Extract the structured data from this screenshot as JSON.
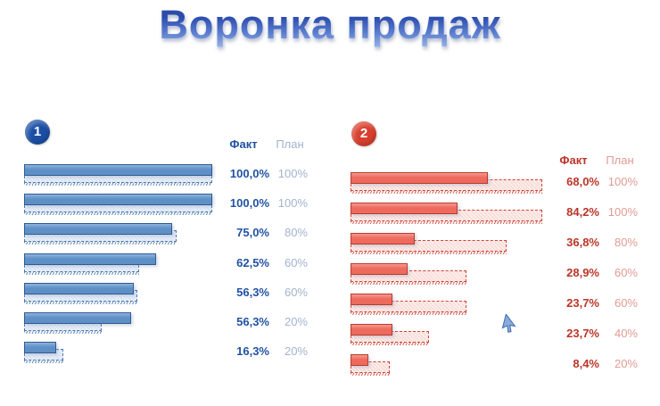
{
  "title": "Воронка продаж",
  "chart_data": [
    {
      "type": "bar",
      "orientation": "horizontal",
      "badge": "1",
      "fact_header": "Факт",
      "plan_header": "План",
      "legend_position": "top-right",
      "grid": false,
      "colors": {
        "fill": "#5e90c6",
        "fill_light": "#8fb3dd",
        "border": "#2f5b93",
        "plan_fill": "#e9effa",
        "plan_border": "#4a79ad",
        "fact_text": "#2152a3",
        "plan_text": "#a3b3cc",
        "badge": "#1b4fa5"
      },
      "rows": [
        {
          "fact": "100,0%",
          "plan": "100%",
          "fact_bar_pct": 100,
          "plan_bar_pct": 100
        },
        {
          "fact": "100,0%",
          "plan": "100%",
          "fact_bar_pct": 100,
          "plan_bar_pct": 100
        },
        {
          "fact": "75,0%",
          "plan": "80%",
          "fact_bar_pct": 78.7,
          "plan_bar_pct": 81
        },
        {
          "fact": "62,5%",
          "plan": "60%",
          "fact_bar_pct": 70,
          "plan_bar_pct": 61
        },
        {
          "fact": "56,3%",
          "plan": "60%",
          "fact_bar_pct": 58.3,
          "plan_bar_pct": 60
        },
        {
          "fact": "56,3%",
          "plan": "20%",
          "fact_bar_pct": 57,
          "plan_bar_pct": 41
        },
        {
          "fact": "16,3%",
          "plan": "20%",
          "fact_bar_pct": 17,
          "plan_bar_pct": 21
        }
      ]
    },
    {
      "type": "bar",
      "orientation": "horizontal",
      "badge": "2",
      "fact_header": "Факт",
      "plan_header": "План",
      "legend_position": "top-right",
      "grid": false,
      "colors": {
        "fill": "#ee6a5d",
        "fill_light": "#f59a8f",
        "border": "#b93a2c",
        "plan_fill": "#fdece9",
        "plan_border": "#cc4437",
        "fact_text": "#bb3528",
        "plan_text": "#e09b94",
        "badge": "#d8402e"
      },
      "rows": [
        {
          "fact": "68,0%",
          "plan": "100%",
          "fact_bar_pct": 71.6,
          "plan_bar_pct": 100
        },
        {
          "fact": "84,2%",
          "plan": "100%",
          "fact_bar_pct": 55.8,
          "plan_bar_pct": 100
        },
        {
          "fact": "36,8%",
          "plan": "80%",
          "fact_bar_pct": 33.5,
          "plan_bar_pct": 81.4
        },
        {
          "fact": "28,9%",
          "plan": "60%",
          "fact_bar_pct": 29.8,
          "plan_bar_pct": 60.5
        },
        {
          "fact": "23,7%",
          "plan": "60%",
          "fact_bar_pct": 21.9,
          "plan_bar_pct": 60.5
        },
        {
          "fact": "23,7%",
          "plan": "40%",
          "fact_bar_pct": 21.9,
          "plan_bar_pct": 40.9
        },
        {
          "fact": "8,4%",
          "plan": "20%",
          "fact_bar_pct": 9.3,
          "plan_bar_pct": 20.5
        }
      ]
    }
  ]
}
